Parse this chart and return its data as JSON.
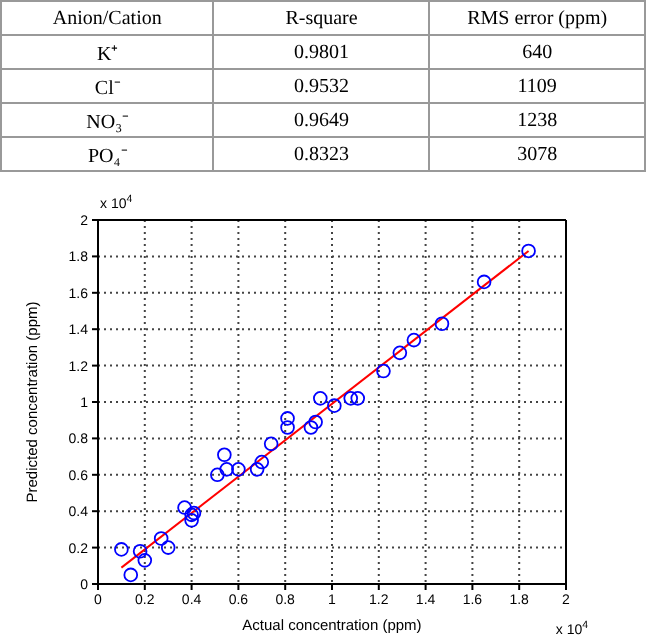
{
  "chart_data": [
    {
      "type": "other",
      "annotations": [
        "Anion/Cation",
        "R-square",
        "RMS error (ppm)",
        "K⁺",
        "0.9801",
        "640",
        "Cl⁻",
        "0.9532",
        "1109",
        "NO₃⁻",
        "0.9649",
        "1238",
        "PO₄⁻",
        "0.8323",
        "3078"
      ]
    },
    {
      "type": "scatter",
      "xlabel": "Actual concentration (ppm)",
      "ylabel": "Predicted concentration (ppm)",
      "annotations": [
        "x 10$^{4}$",
        "x 10$^{4}$"
      ],
      "xlim": [
        0,
        2
      ],
      "ylim": [
        0,
        2
      ],
      "xticks": [
        0,
        0.2,
        0.4,
        0.6,
        0.8,
        1,
        1.2,
        1.4,
        1.6,
        1.8,
        2
      ],
      "yticks": [
        0,
        0.2,
        0.4,
        0.6,
        0.8,
        1,
        1.2,
        1.4,
        1.6,
        1.8,
        2
      ],
      "grid": true,
      "series": [
        {
          "type": "scatter",
          "marker": "circle",
          "color": "#0000ff",
          "x": [
            0.1,
            0.14,
            0.18,
            0.2,
            0.27,
            0.3,
            0.37,
            0.4,
            0.4,
            0.41,
            0.51,
            0.54,
            0.55,
            0.6,
            0.68,
            0.7,
            0.74,
            0.81,
            0.81,
            0.91,
            0.93,
            0.95,
            1.01,
            1.08,
            1.11,
            1.22,
            1.29,
            1.35,
            1.47,
            1.65,
            1.84
          ],
          "values": [
            0.19,
            0.05,
            0.18,
            0.13,
            0.25,
            0.2,
            0.42,
            0.38,
            0.35,
            0.39,
            0.6,
            0.71,
            0.63,
            0.63,
            0.63,
            0.67,
            0.77,
            0.91,
            0.86,
            0.86,
            0.89,
            1.02,
            0.98,
            1.02,
            1.02,
            1.17,
            1.27,
            1.34,
            1.43,
            1.66,
            1.83
          ]
        },
        {
          "type": "line",
          "marker": "none",
          "color": "#ff0000",
          "x": [
            0.1,
            1.84
          ],
          "values": [
            0.09,
            1.83
          ]
        }
      ]
    }
  ]
}
